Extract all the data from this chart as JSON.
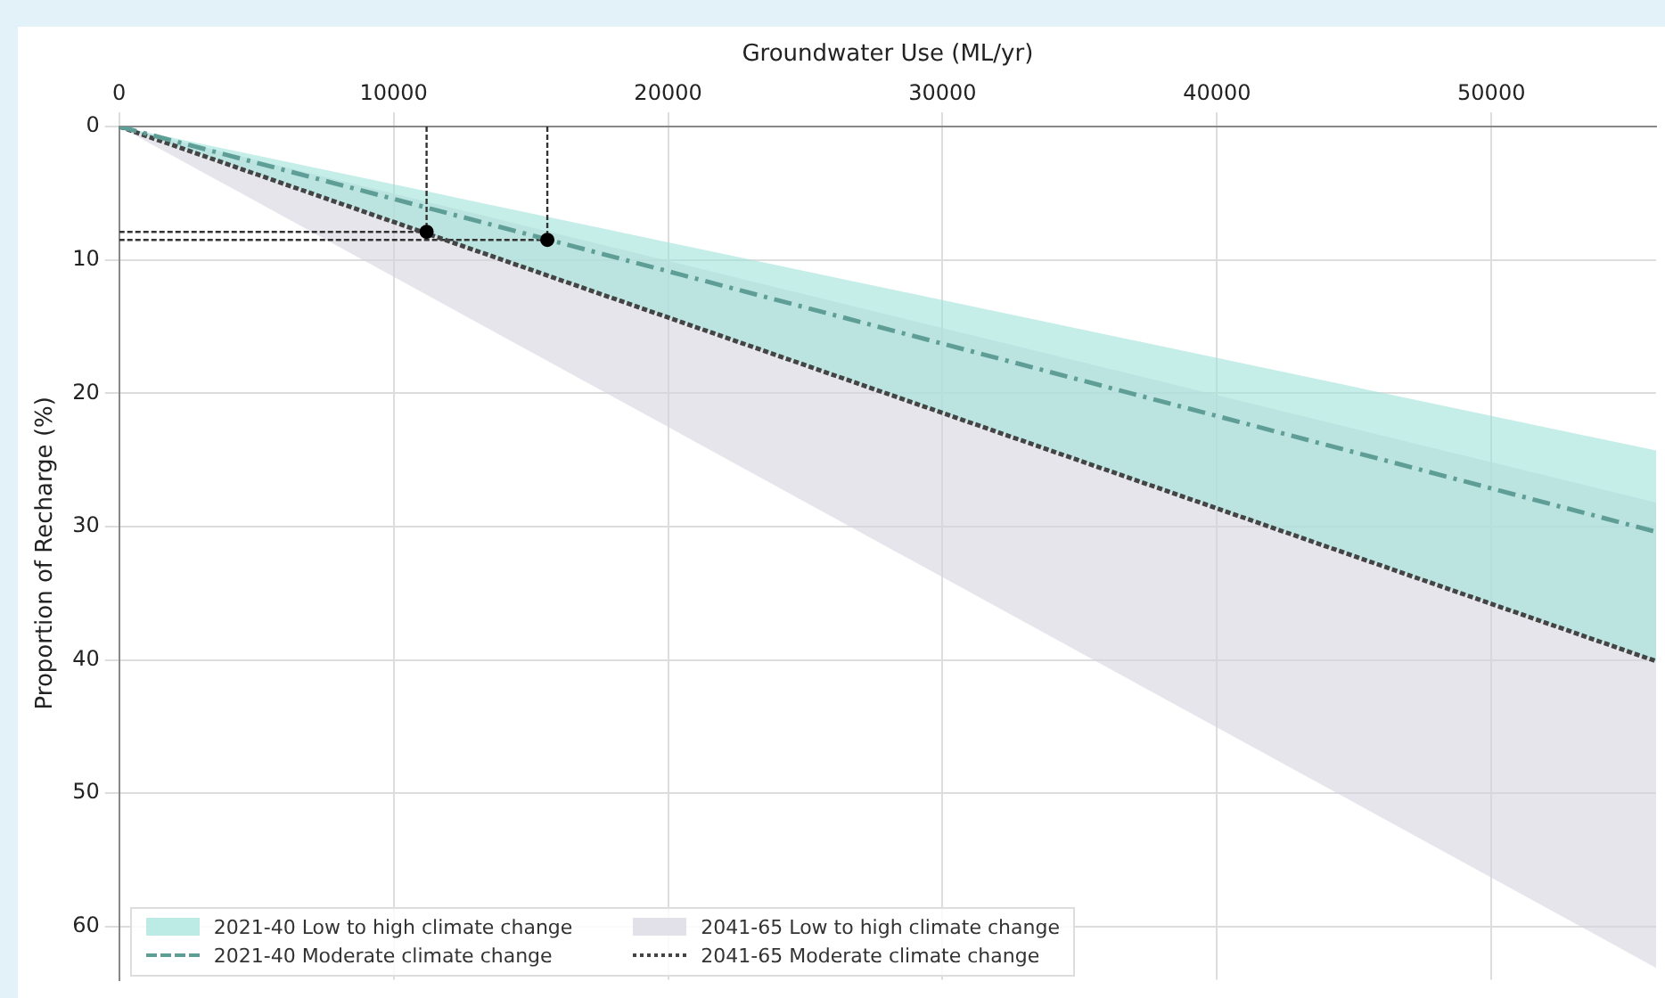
{
  "chart_data": {
    "type": "line",
    "xlabel": "Groundwater Use (ML/yr)",
    "ylabel": "Proportion of Recharge (%)",
    "xlim": [
      0,
      56000
    ],
    "xticks": [
      0,
      10000,
      20000,
      30000,
      40000,
      50000
    ],
    "ylim": [
      64,
      0
    ],
    "yticks": [
      0,
      10,
      20,
      30,
      40,
      50,
      60
    ],
    "grid": true,
    "legend": "bottom left",
    "series": [
      {
        "name": "2021-40 Low to high climate change",
        "type": "area",
        "color": "#9fe3da",
        "x": [
          0,
          56000
        ],
        "values": [
          null,
          null
        ],
        "lower": [
          0,
          24.3
        ],
        "upper": [
          0,
          40.1
        ]
      },
      {
        "name": "2021-40 Moderate climate change",
        "type": "line",
        "color": "#5f9e96",
        "line_style": "dashed",
        "marker": "none",
        "x": [
          0,
          56000
        ],
        "values": [
          0,
          30.4
        ]
      },
      {
        "name": "2041-65 Low to high climate change",
        "type": "area",
        "color": "#d6d4df",
        "x": [
          0,
          56000
        ],
        "values": [
          null,
          null
        ],
        "lower": [
          0,
          28.2
        ],
        "upper": [
          0,
          63.1
        ]
      },
      {
        "name": "2041-65 Moderate climate change",
        "type": "line",
        "color": "#444444",
        "line_style": "dotted",
        "marker": "none",
        "x": [
          0,
          56000
        ],
        "values": [
          0,
          40.1
        ]
      },
      {
        "type": "line",
        "color": "#333333",
        "line_style": "dotted",
        "marker": "none",
        "x": [
          11200,
          11200
        ],
        "values": [
          0,
          7.9
        ]
      },
      {
        "type": "line",
        "color": "#333333",
        "line_style": "dotted",
        "marker": "none",
        "x": [
          0,
          11200
        ],
        "values": [
          7.9,
          7.9
        ]
      },
      {
        "type": "line",
        "color": "#333333",
        "line_style": "dotted",
        "marker": "none",
        "x": [
          15600,
          15600
        ],
        "values": [
          0,
          8.5
        ]
      },
      {
        "type": "line",
        "color": "#333333",
        "line_style": "dotted",
        "marker": "none",
        "x": [
          0,
          15600
        ],
        "values": [
          8.5,
          8.5
        ]
      },
      {
        "type": "scatter",
        "color": "#000000",
        "marker": "circle",
        "x": [
          11200,
          15600
        ],
        "values": [
          7.9,
          8.5
        ]
      }
    ]
  }
}
